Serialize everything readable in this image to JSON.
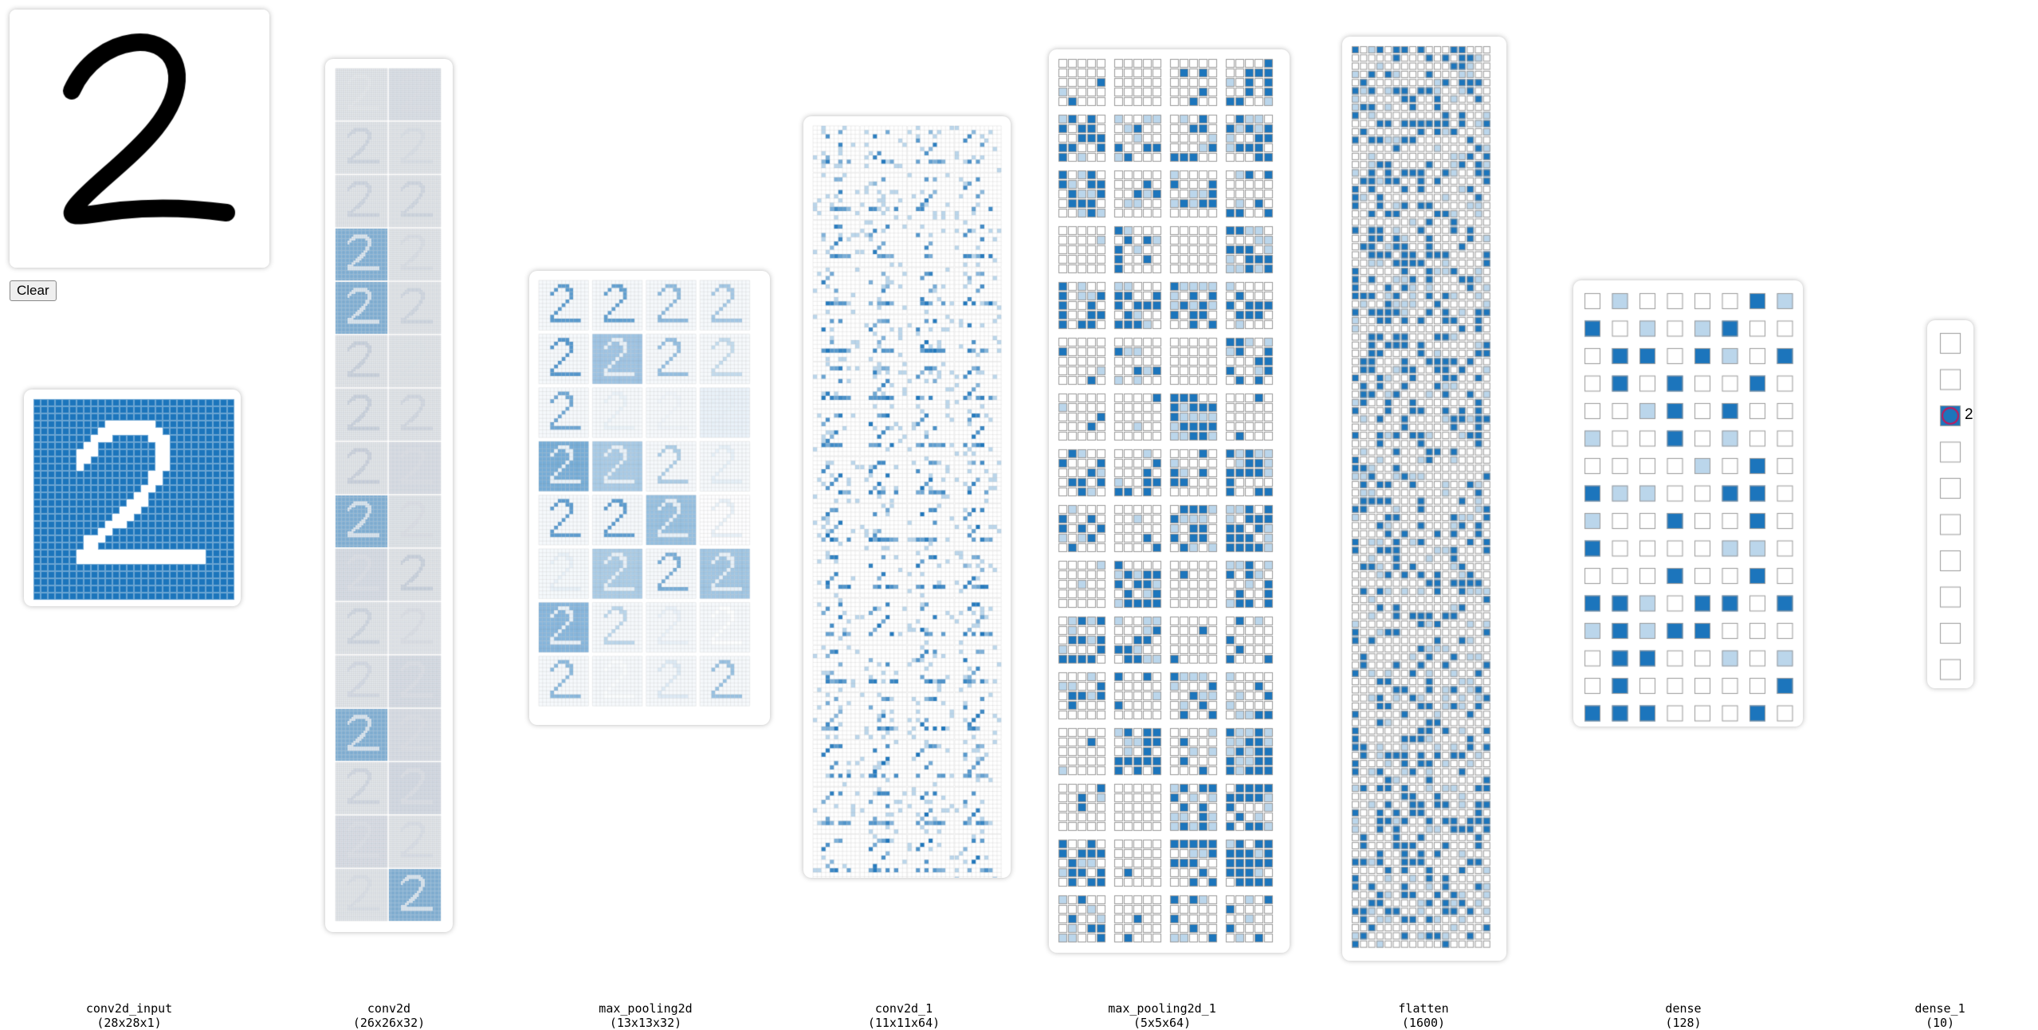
{
  "controls": {
    "clear_label": "Clear"
  },
  "drawn_digit": "2",
  "prediction": {
    "label": "2",
    "index": 2
  },
  "colors": {
    "accent": "#1c75bc",
    "light": "#b9d6ea",
    "cell_border": "#999999",
    "background": "#ffffff"
  },
  "layers": [
    {
      "name": "conv2d_input",
      "shape": "(28x28x1)"
    },
    {
      "name": "conv2d",
      "shape": "(26x26x32)"
    },
    {
      "name": "max_pooling2d",
      "shape": "(13x13x32)"
    },
    {
      "name": "conv2d_1",
      "shape": "(11x11x64)"
    },
    {
      "name": "max_pooling2d_1",
      "shape": "(5x5x64)"
    },
    {
      "name": "flatten",
      "shape": "(1600)"
    },
    {
      "name": "dense",
      "shape": "(128)"
    },
    {
      "name": "dense_1",
      "shape": "(10)"
    }
  ]
}
